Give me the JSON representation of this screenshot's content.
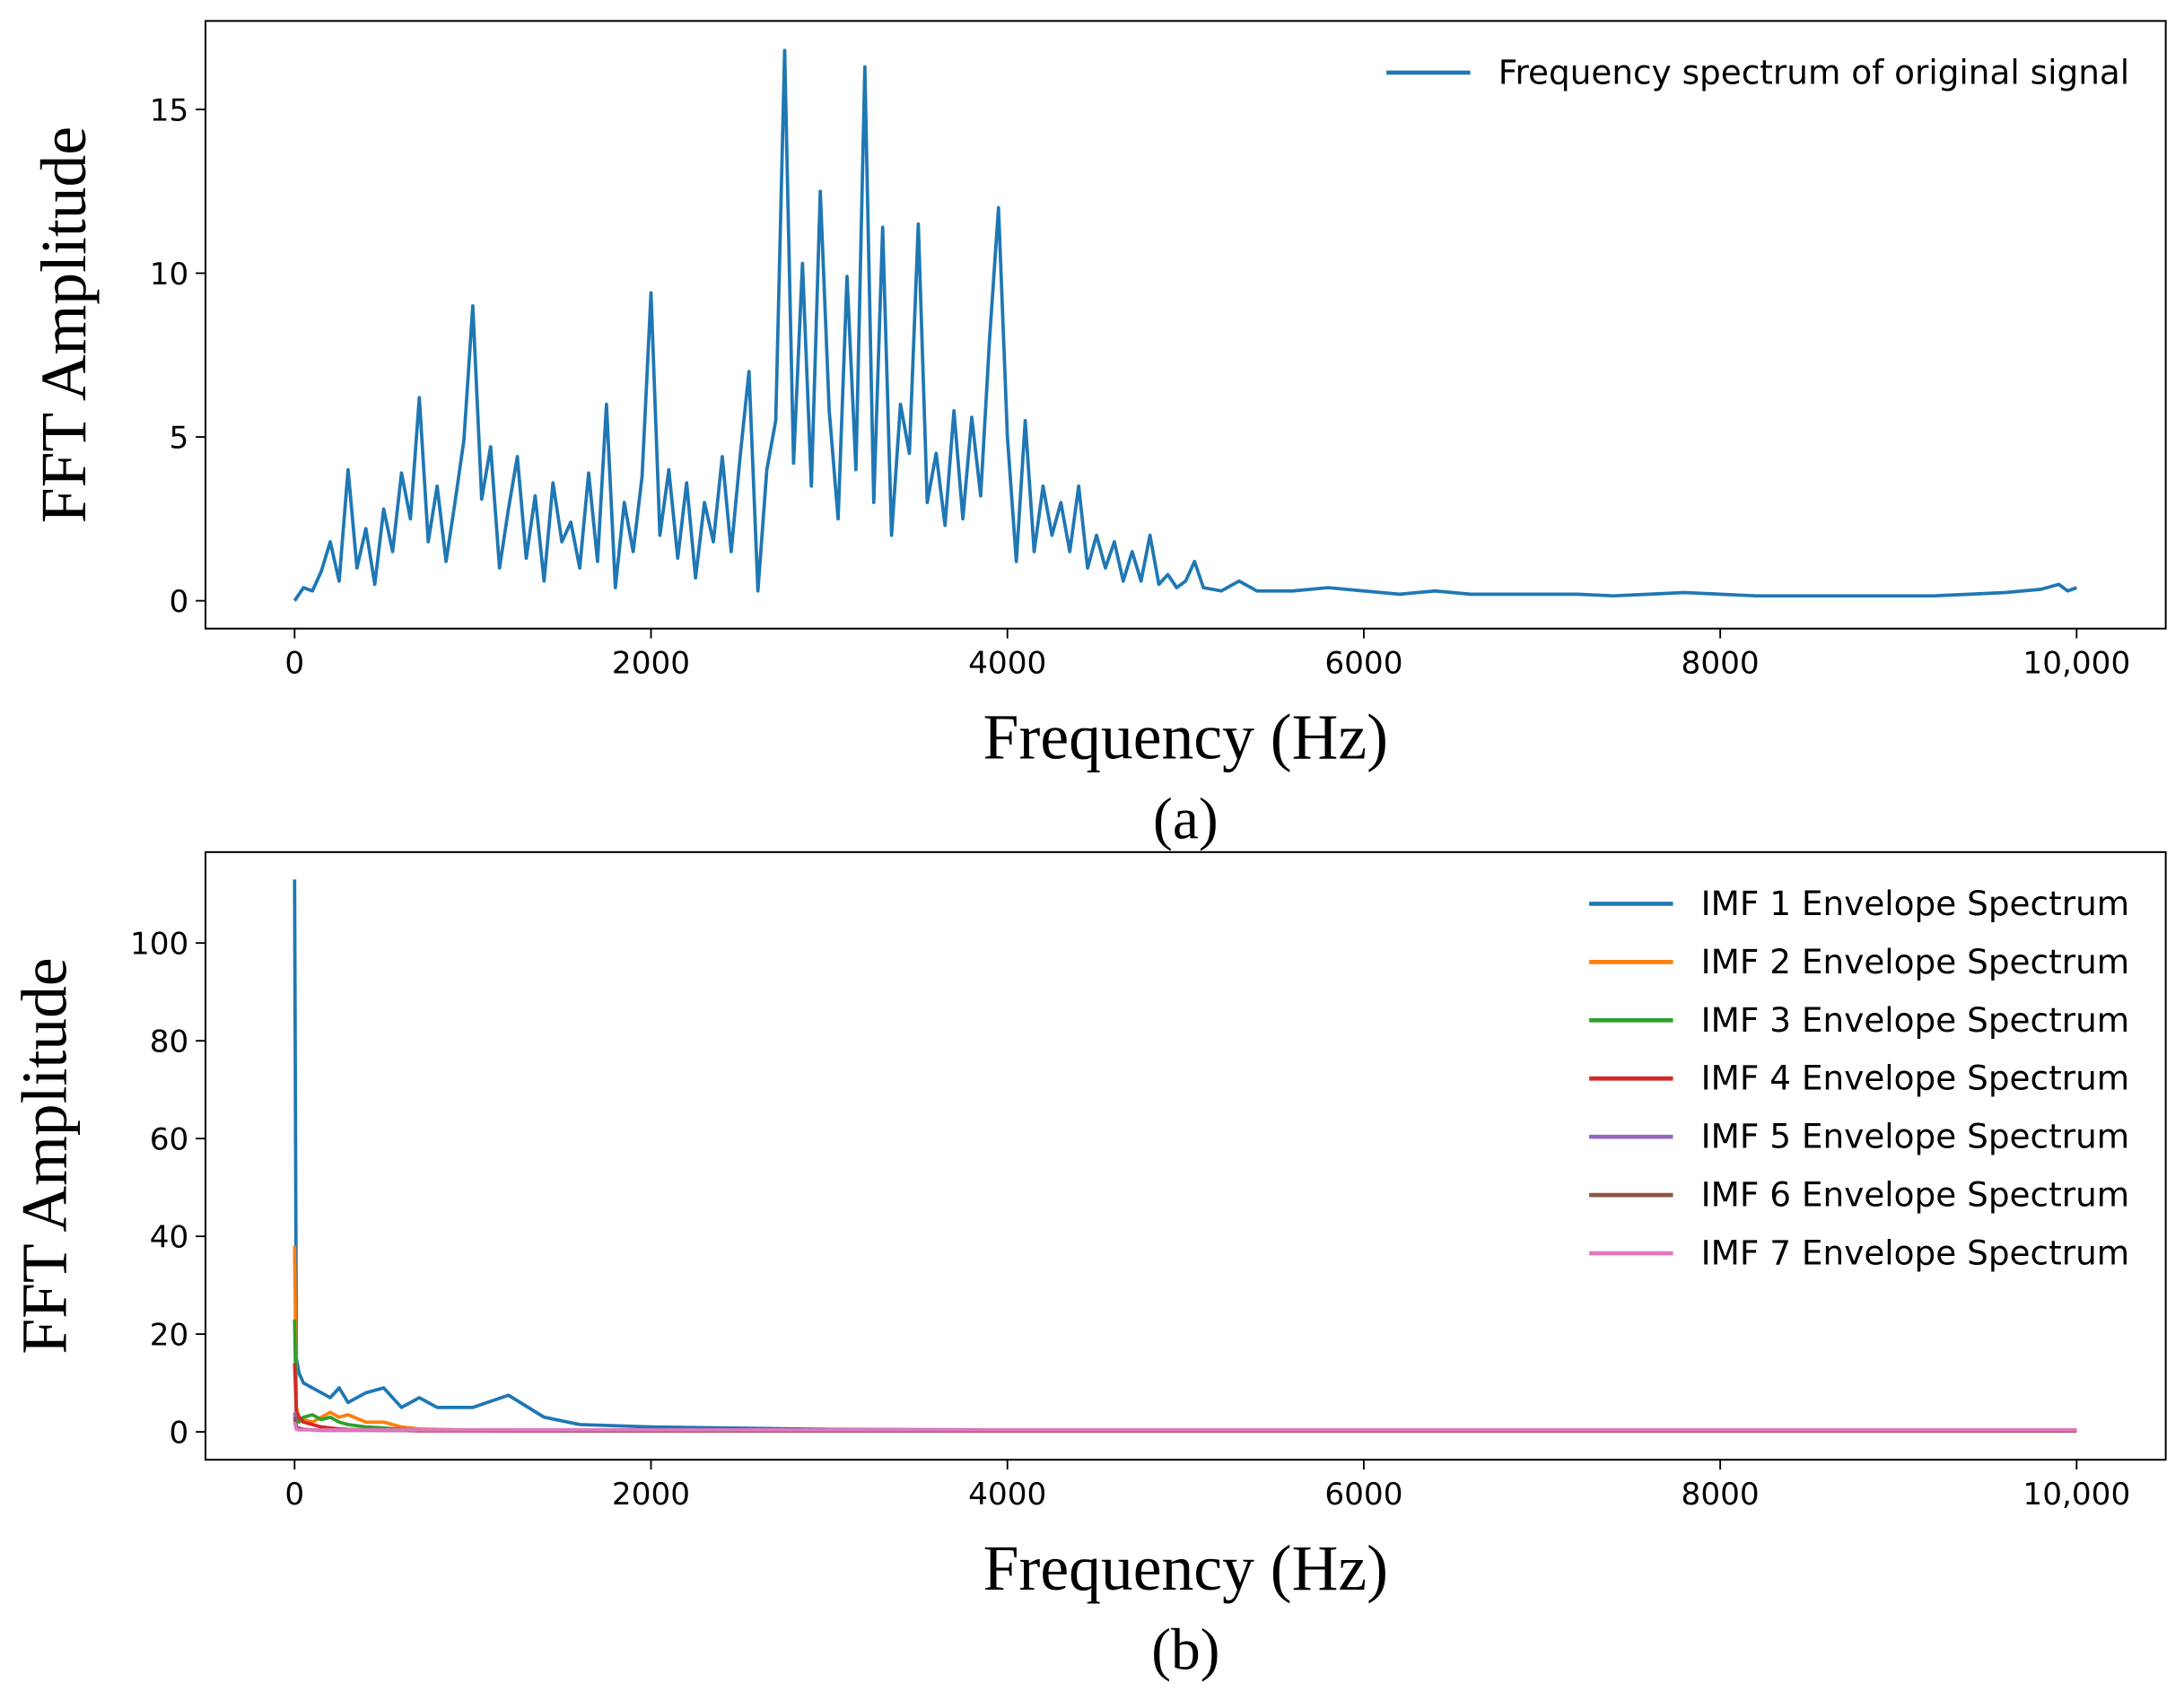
{
  "chart_data": [
    {
      "type": "line",
      "caption": "(a)",
      "xlabel": "Frequency (Hz)",
      "ylabel": "FFT Amplitude",
      "x": [
        0,
        50,
        100,
        150,
        200,
        250,
        300,
        350,
        400,
        450,
        500,
        550,
        600,
        650,
        700,
        750,
        800,
        850,
        900,
        950,
        1000,
        1050,
        1100,
        1150,
        1200,
        1250,
        1300,
        1350,
        1400,
        1450,
        1500,
        1550,
        1600,
        1650,
        1700,
        1750,
        1800,
        1850,
        1900,
        1950,
        2000,
        2050,
        2100,
        2150,
        2200,
        2250,
        2300,
        2350,
        2400,
        2450,
        2500,
        2550,
        2600,
        2650,
        2700,
        2750,
        2800,
        2850,
        2900,
        2950,
        3000,
        3050,
        3100,
        3150,
        3200,
        3250,
        3300,
        3350,
        3400,
        3450,
        3500,
        3550,
        3600,
        3650,
        3700,
        3750,
        3800,
        3850,
        3900,
        3950,
        4000,
        4050,
        4100,
        4150,
        4200,
        4250,
        4300,
        4350,
        4400,
        4450,
        4500,
        4550,
        4600,
        4650,
        4700,
        4750,
        4800,
        4850,
        4900,
        4950,
        5000,
        5050,
        5100,
        5200,
        5300,
        5400,
        5600,
        5800,
        6000,
        6200,
        6400,
        6600,
        6800,
        7000,
        7200,
        7400,
        7600,
        7800,
        8000,
        8200,
        8400,
        8600,
        8800,
        9000,
        9200,
        9400,
        9600,
        9800,
        9900,
        9950,
        10000
      ],
      "series": [
        {
          "name": "Frequency spectrum of original signal",
          "color": "#1f77b4",
          "values": [
            0,
            0.4,
            0.3,
            0.9,
            1.8,
            0.6,
            4.0,
            1.0,
            2.2,
            0.5,
            2.8,
            1.5,
            3.9,
            2.5,
            6.2,
            1.8,
            3.5,
            1.2,
            3.0,
            4.9,
            9.0,
            3.1,
            4.7,
            1.0,
            2.8,
            4.4,
            1.3,
            3.2,
            0.6,
            3.6,
            1.8,
            2.4,
            1.0,
            3.9,
            1.2,
            6.0,
            0.4,
            3.0,
            1.5,
            3.8,
            9.4,
            2.0,
            4.0,
            1.3,
            3.6,
            0.7,
            3.0,
            1.8,
            4.4,
            1.5,
            4.4,
            7.0,
            0.3,
            4.0,
            5.5,
            16.8,
            4.2,
            10.3,
            3.5,
            12.5,
            5.8,
            2.5,
            9.9,
            4.0,
            16.3,
            3.0,
            11.4,
            2.0,
            6.0,
            4.5,
            11.5,
            3.0,
            4.5,
            2.3,
            5.8,
            2.5,
            5.6,
            3.2,
            8.0,
            12.0,
            5.0,
            1.2,
            5.5,
            1.5,
            3.5,
            2.0,
            3.0,
            1.5,
            3.5,
            1.0,
            2.0,
            1.0,
            1.8,
            0.6,
            1.5,
            0.6,
            2.0,
            0.5,
            0.8,
            0.4,
            0.6,
            1.2,
            0.4,
            0.3,
            0.6,
            0.3,
            0.3,
            0.4,
            0.3,
            0.2,
            0.3,
            0.2,
            0.2,
            0.2,
            0.2,
            0.15,
            0.2,
            0.25,
            0.2,
            0.15,
            0.15,
            0.15,
            0.15,
            0.15,
            0.15,
            0.2,
            0.25,
            0.35,
            0.5,
            0.3,
            0.4
          ]
        }
      ],
      "xlim": [
        -500,
        10500
      ],
      "ylim": [
        -0.85,
        17.7
      ],
      "xticks": [
        0,
        2000,
        4000,
        6000,
        8000,
        {
          "value": 10000,
          "label": "10,000"
        }
      ],
      "yticks": [
        0,
        5,
        10,
        15
      ],
      "legend": "upper right",
      "grid": false
    },
    {
      "type": "line",
      "caption": "(b)",
      "xlabel": "Frequency (Hz)",
      "ylabel": "FFT Amplitude",
      "x": [
        0,
        10,
        25,
        50,
        100,
        150,
        200,
        250,
        300,
        400,
        500,
        600,
        700,
        800,
        1000,
        1200,
        1400,
        1600,
        2000,
        3000,
        5000,
        10000
      ],
      "series": [
        {
          "name": "IMF 1 Envelope Spectrum",
          "color": "#1f77b4",
          "values": [
            113,
            15,
            12,
            10,
            9,
            8,
            7,
            9,
            6,
            8,
            9,
            5,
            7,
            5,
            5,
            7.5,
            3,
            1.5,
            1,
            0.5,
            0.3,
            0.2
          ]
        },
        {
          "name": "IMF 2 Envelope Spectrum",
          "color": "#ff7f0e",
          "values": [
            38,
            5,
            3,
            2.5,
            2,
            3,
            4,
            3,
            3.5,
            2,
            2,
            1,
            0.6,
            0.5,
            0.4,
            0.3,
            0.3,
            0.2,
            0.2,
            0.2,
            0.2,
            0.2
          ]
        },
        {
          "name": "IMF 3 Envelope Spectrum",
          "color": "#2ca02c",
          "values": [
            23,
            3,
            2,
            3,
            3.5,
            2.5,
            3,
            2,
            1.5,
            1,
            0.8,
            0.5,
            0.4,
            0.3,
            0.3,
            0.2,
            0.2,
            0.2,
            0.2,
            0.2,
            0.2,
            0.2
          ]
        },
        {
          "name": "IMF 4 Envelope Spectrum",
          "color": "#d62728",
          "values": [
            14,
            4,
            3,
            2,
            1.5,
            1,
            0.8,
            0.6,
            0.5,
            0.4,
            0.3,
            0.3,
            0.2,
            0.2,
            0.2,
            0.2,
            0.2,
            0.2,
            0.2,
            0.2,
            0.2,
            0.2
          ]
        },
        {
          "name": "IMF 5 Envelope Spectrum",
          "color": "#9467bd",
          "values": [
            4,
            1,
            0.8,
            0.5,
            0.4,
            0.3,
            0.3,
            0.3,
            0.3,
            0.3,
            0.3,
            0.3,
            0.3,
            0.3,
            0.3,
            0.3,
            0.3,
            0.3,
            0.3,
            0.3,
            0.3,
            0.3
          ]
        },
        {
          "name": "IMF 6 Envelope Spectrum",
          "color": "#8c564b",
          "values": [
            3,
            0.8,
            0.6,
            0.5,
            0.4,
            0.4,
            0.4,
            0.4,
            0.4,
            0.4,
            0.4,
            0.4,
            0.4,
            0.4,
            0.4,
            0.4,
            0.4,
            0.4,
            0.4,
            0.4,
            0.4,
            0.4
          ]
        },
        {
          "name": "IMF 7 Envelope Spectrum",
          "color": "#e377c2",
          "values": [
            2,
            0.5,
            0.4,
            0.4,
            0.4,
            0.4,
            0.4,
            0.4,
            0.4,
            0.4,
            0.4,
            0.4,
            0.4,
            0.4,
            0.4,
            0.4,
            0.4,
            0.4,
            0.4,
            0.4,
            0.4,
            0.4
          ]
        }
      ],
      "xlim": [
        -500,
        10500
      ],
      "ylim": [
        -5.7,
        118.6
      ],
      "xticks": [
        0,
        2000,
        4000,
        6000,
        8000,
        {
          "value": 10000,
          "label": "10,000"
        }
      ],
      "yticks": [
        0,
        20,
        40,
        60,
        80,
        100
      ],
      "legend": "upper right",
      "grid": false
    }
  ]
}
